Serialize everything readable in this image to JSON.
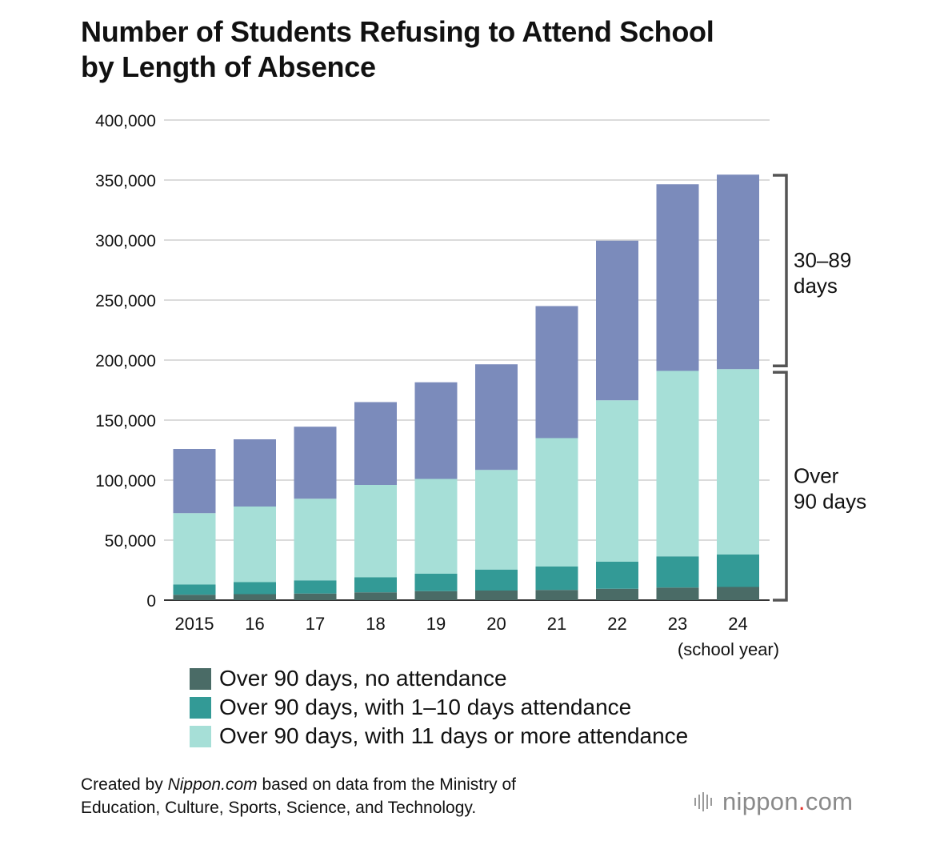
{
  "title_lines": [
    "Number of Students Refusing to Attend School",
    "by Length of Absence"
  ],
  "chart_data": {
    "type": "bar",
    "stacked": true,
    "title": "Number of Students Refusing to Attend School by Length of Absence",
    "categories": [
      "2015",
      "16",
      "17",
      "18",
      "19",
      "20",
      "21",
      "22",
      "23",
      "24"
    ],
    "x_note": "(school year)",
    "ylim": [
      0,
      400000
    ],
    "yticks": [
      0,
      50000,
      100000,
      150000,
      200000,
      250000,
      300000,
      350000,
      400000
    ],
    "ytick_labels": [
      "0",
      "50,000",
      "100,000",
      "150,000",
      "200,000",
      "250,000",
      "300,000",
      "350,000",
      "400,000"
    ],
    "grid": true,
    "series": [
      {
        "name": "Over 90 days, no attendance",
        "color": "#4a6b66",
        "values": [
          4500,
          5000,
          5500,
          6500,
          7500,
          8000,
          8500,
          9500,
          10500,
          11000
        ]
      },
      {
        "name": "Over 90 days, with 1–10 days attendance",
        "color": "#339a96",
        "values": [
          8500,
          10000,
          11000,
          12500,
          14500,
          17500,
          19500,
          22500,
          26000,
          27000
        ]
      },
      {
        "name": "Over 90 days, with 11 days or more attendance",
        "color": "#a6dfd7",
        "values": [
          59500,
          63000,
          68000,
          77000,
          79000,
          83000,
          107000,
          134500,
          154500,
          154500
        ]
      },
      {
        "name": "30–89 days",
        "color": "#7b8bbb",
        "values": [
          53500,
          56000,
          60000,
          69000,
          80500,
          88000,
          110000,
          133000,
          155500,
          162000
        ]
      }
    ],
    "brackets": [
      {
        "label_lines": [
          "30–89",
          "days"
        ],
        "from": 192500,
        "to": 354000
      },
      {
        "label_lines": [
          "Over",
          "90 days"
        ],
        "from": 0,
        "to": 192500
      }
    ]
  },
  "legend": [
    {
      "label": "Over 90 days, no attendance",
      "color": "#4a6b66"
    },
    {
      "label": "Over 90 days, with 1–10 days attendance",
      "color": "#339a96"
    },
    {
      "label": "Over 90 days, with 11 days or more attendance",
      "color": "#a6dfd7"
    }
  ],
  "footnote": {
    "prefix": "Created by ",
    "source_name": "Nippon.com",
    "suffix_line1": " based on data from the Ministry of",
    "line2": "Education, Culture, Sports, Science, and Technology."
  },
  "logo": {
    "word": "nippon",
    "dot": ".",
    "tld": "com"
  }
}
